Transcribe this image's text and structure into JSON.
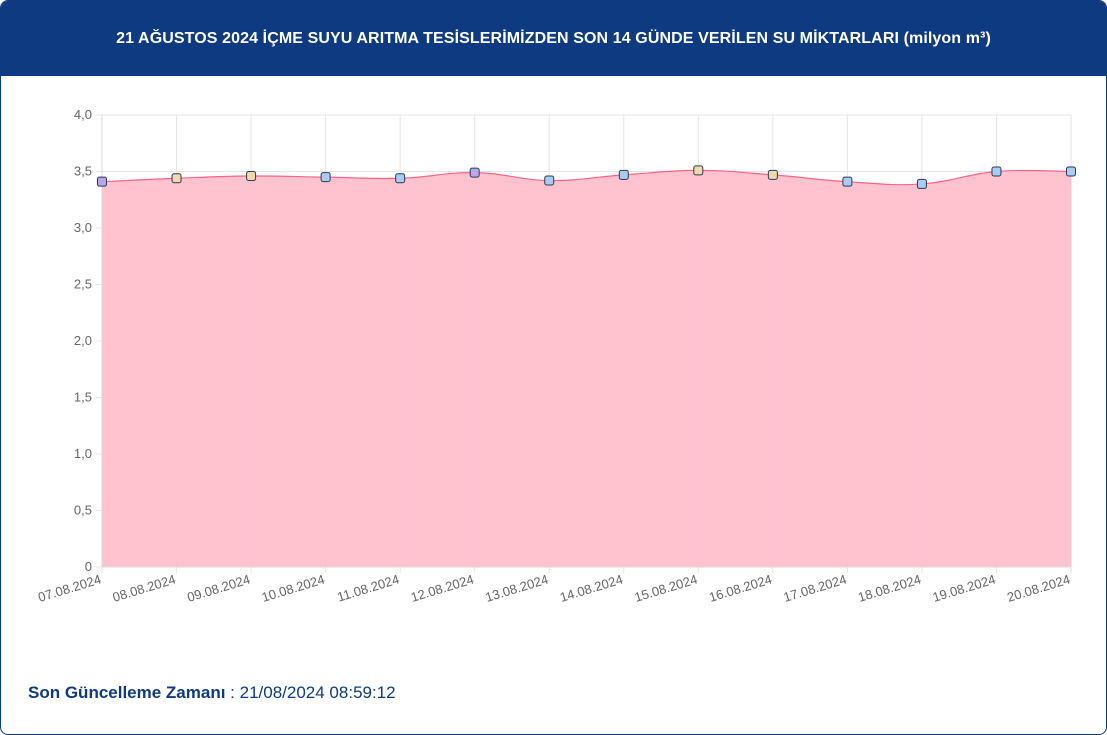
{
  "header": {
    "title": "21 AĞUSTOS 2024 İÇME SUYU ARITMA TESİSLERİMİZDEN SON 14 GÜNDE VERİLEN SU MİKTARLARI (milyon m³)"
  },
  "footer": {
    "label": "Son Güncelleme Zamanı",
    "separator": " : ",
    "value": "21/08/2024 08:59:12"
  },
  "chart_data": {
    "type": "area",
    "title": "",
    "xlabel": "",
    "ylabel": "",
    "ylim": [
      0,
      4.0
    ],
    "yticks": [
      "0",
      "0,5",
      "1,0",
      "1,5",
      "2,0",
      "2,5",
      "3,0",
      "3,5",
      "4,0"
    ],
    "grid": true,
    "categories": [
      "07.08.2024",
      "08.08.2024",
      "09.08.2024",
      "10.08.2024",
      "11.08.2024",
      "12.08.2024",
      "13.08.2024",
      "14.08.2024",
      "15.08.2024",
      "16.08.2024",
      "17.08.2024",
      "18.08.2024",
      "19.08.2024",
      "20.08.2024"
    ],
    "values": [
      3.41,
      3.44,
      3.46,
      3.45,
      3.44,
      3.49,
      3.42,
      3.47,
      3.51,
      3.47,
      3.41,
      3.39,
      3.5,
      3.5
    ],
    "colors": {
      "fill": "#ffc0cd",
      "line": "#ff6384",
      "grid": "#e5e5e5",
      "axis_text": "#666666",
      "marker_stroke": "#2a3a5a",
      "markers": [
        "#b6a8e8",
        "#f2d9a8",
        "#f2d9a8",
        "#a9cdf2",
        "#a9cdf2",
        "#b6a8e8",
        "#a9cdf2",
        "#a9cdf2",
        "#f2d9a8",
        "#f2d9a8",
        "#a9cdf2",
        "#a9cdf2",
        "#a9cdf2",
        "#a9cdf2"
      ]
    }
  }
}
